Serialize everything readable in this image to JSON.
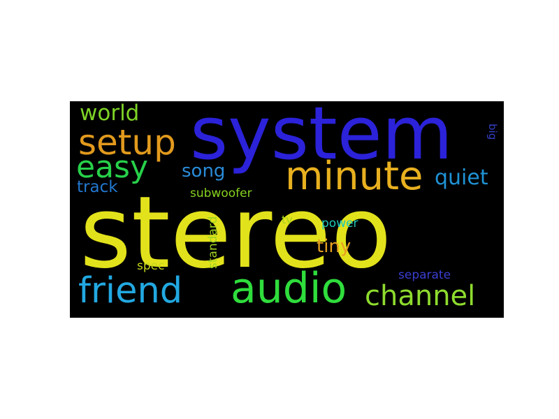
{
  "wordcloud": {
    "background": "#000000",
    "words": [
      {
        "id": "stereo",
        "text": "stereo",
        "color": "#e2e21c"
      },
      {
        "id": "system",
        "text": "system",
        "color": "#2b22d9"
      },
      {
        "id": "minute",
        "text": "minute",
        "color": "#e8b01f"
      },
      {
        "id": "audio",
        "text": "audio",
        "color": "#2fdd3c"
      },
      {
        "id": "friend",
        "text": "friend",
        "color": "#22a8e1"
      },
      {
        "id": "setup",
        "text": "setup",
        "color": "#e29a1d"
      },
      {
        "id": "easy",
        "text": "easy",
        "color": "#27d14a"
      },
      {
        "id": "channel",
        "text": "channel",
        "color": "#8edb2e"
      },
      {
        "id": "world",
        "text": "world",
        "color": "#7ed326"
      },
      {
        "id": "song",
        "text": "song",
        "color": "#2a8bd8"
      },
      {
        "id": "quiet",
        "text": "quiet",
        "color": "#1f93d6"
      },
      {
        "id": "track",
        "text": "track",
        "color": "#2277cf"
      },
      {
        "id": "subwoofer",
        "text": "subwoofer",
        "color": "#86d11f"
      },
      {
        "id": "tiny",
        "text": "tiny",
        "color": "#e6a021"
      },
      {
        "id": "standard",
        "text": "standard",
        "color": "#9fd21e"
      },
      {
        "id": "power",
        "text": "power",
        "color": "#1fc7b9"
      },
      {
        "id": "tv",
        "text": "tv",
        "color": "#a4d21a"
      },
      {
        "id": "spec",
        "text": "spec",
        "color": "#c5d61c"
      },
      {
        "id": "separate",
        "text": "separate",
        "color": "#3a3ed1"
      },
      {
        "id": "big",
        "text": "big",
        "color": "#3540c8"
      }
    ]
  }
}
